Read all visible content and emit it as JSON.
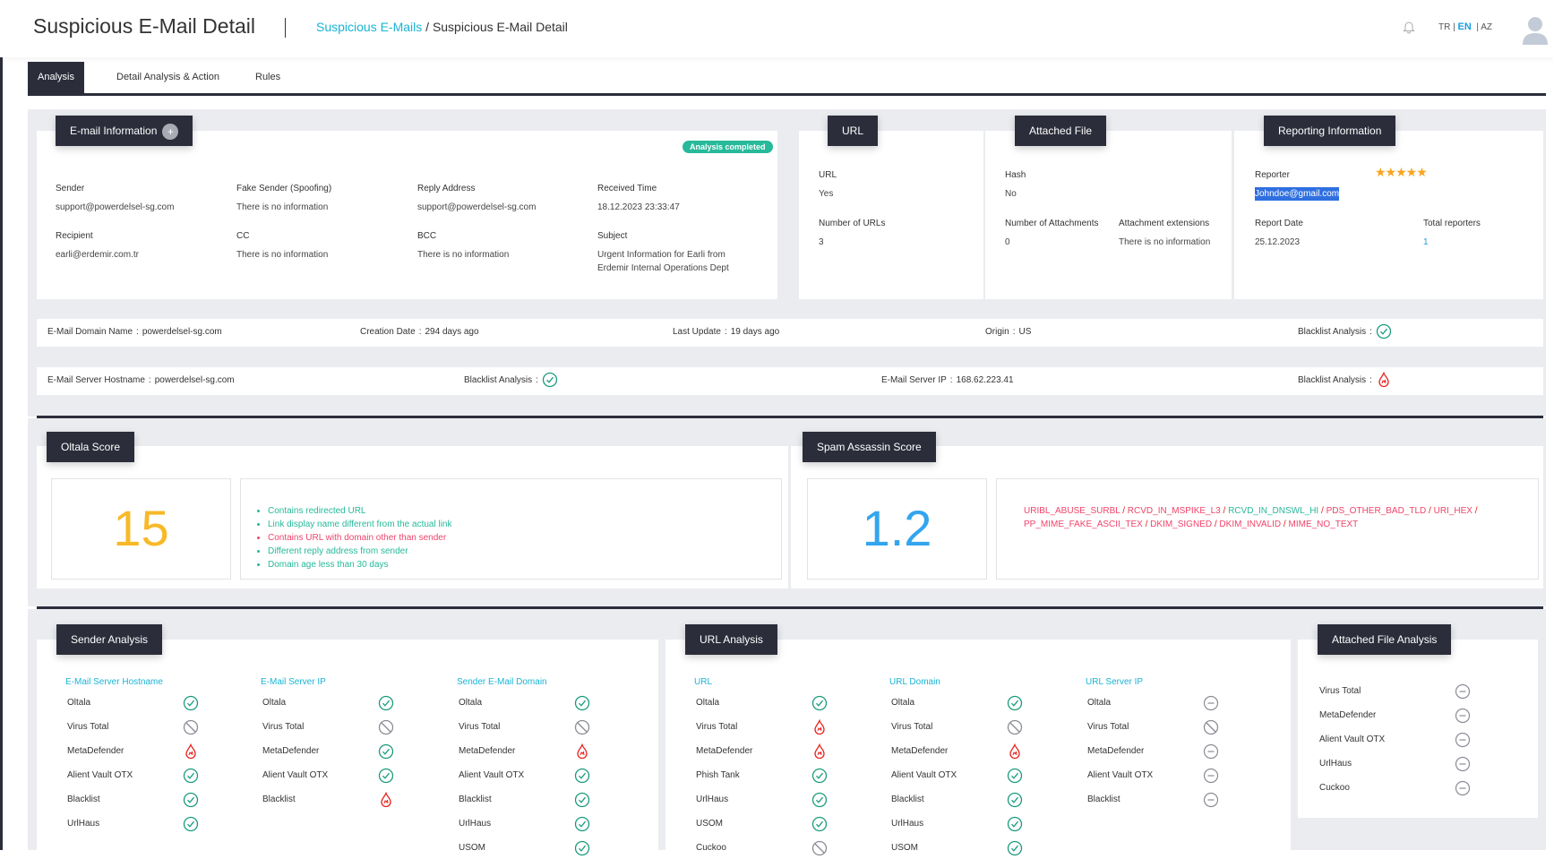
{
  "header": {
    "title": "Suspicious E-Mail Detail",
    "breadcrumb": {
      "parent": "Suspicious E-Mails",
      "separator": "/",
      "current": "Suspicious E-Mail Detail"
    },
    "lang": {
      "tr": "TR",
      "en": "EN",
      "az": "AZ",
      "sep": "|"
    }
  },
  "tabs": [
    {
      "label": "Analysis",
      "active": true
    },
    {
      "label": "Detail Analysis & Action"
    },
    {
      "label": "Rules"
    }
  ],
  "email_info": {
    "title": "E-mail Information",
    "plus": "+",
    "status": "Analysis completed",
    "fields": [
      {
        "label": "Sender",
        "value": "support@powerdelsel-sg.com"
      },
      {
        "label": "Fake Sender (Spoofing)",
        "value": "There is no information"
      },
      {
        "label": "Reply Address",
        "value": "support@powerdelsel-sg.com"
      },
      {
        "label": "Received Time",
        "value": "18.12.2023 23:33:47"
      },
      {
        "label": "Recipient",
        "value": "earli@erdemir.com.tr"
      },
      {
        "label": "CC",
        "value": "There is no information"
      },
      {
        "label": "BCC",
        "value": "There is no information"
      },
      {
        "label": "Subject",
        "value": "Urgent Information for Earli from Erdemir Internal Operations Dept"
      }
    ]
  },
  "url": {
    "title": "URL",
    "url_label": "URL",
    "url_value": "Yes",
    "count_label": "Number of URLs",
    "count_value": "3"
  },
  "attached": {
    "title": "Attached File",
    "hash_label": "Hash",
    "hash_value": "No",
    "count_label": "Number of Attachments",
    "count_value": "0",
    "ext_label": "Attachment extensions",
    "ext_value": "There is no information"
  },
  "reporting": {
    "title": "Reporting Information",
    "reporter_label": "Reporter",
    "reporter_value": "Johndoe@gmail.com",
    "rating": 5,
    "stars": "★★★★★",
    "date_label": "Report Date",
    "date_value": "25.12.2023",
    "total_label": "Total reporters",
    "total_value": "1"
  },
  "domain_row": {
    "domain_label": "E-Mail Domain Name",
    "domain_value": "powerdelsel-sg.com",
    "creation_label": "Creation Date",
    "creation_value": "294 days ago",
    "update_label": "Last Update",
    "update_value": "19 days ago",
    "origin_label": "Origin",
    "origin_value": "US",
    "blacklist_label": "Blacklist Analysis",
    "blacklist_status": "check",
    "colon": ":"
  },
  "server_row": {
    "host_label": "E-Mail Server Hostname",
    "host_value": "powerdelsel-sg.com",
    "blacklist1_label": "Blacklist Analysis",
    "blacklist1_status": "check",
    "ip_label": "E-Mail Server IP",
    "ip_value": "168.62.223.41",
    "blacklist2_label": "Blacklist Analysis",
    "blacklist2_status": "flame",
    "colon": ":"
  },
  "oltala_score": {
    "title": "Oltala Score",
    "score": "15",
    "color": "#f7b928",
    "reasons": [
      {
        "text": "Contains redirected URL",
        "color": "#26b99a"
      },
      {
        "text": "Link display name different from the actual link",
        "color": "#26b99a"
      },
      {
        "text": "Contains URL with domain other than sender",
        "color": "#f0436a"
      },
      {
        "text": "Different reply address from sender",
        "color": "#26b99a"
      },
      {
        "text": "Domain age less than 30 days",
        "color": "#26b99a"
      }
    ]
  },
  "spam_score": {
    "title": "Spam Assassin Score",
    "score": "1.2",
    "color": "#33a5ee",
    "rules": [
      {
        "text": "URIBL_ABUSE_SURBL",
        "color": "#f0436a"
      },
      {
        "text": "RCVD_IN_MSPIKE_L3",
        "color": "#f0436a"
      },
      {
        "text": "RCVD_IN_DNSWL_HI",
        "color": "#26b99a"
      },
      {
        "text": "PDS_OTHER_BAD_TLD",
        "color": "#f0436a"
      },
      {
        "text": "URI_HEX",
        "color": "#f0436a"
      },
      {
        "text": "PP_MIME_FAKE_ASCII_TEX",
        "color": "#f0436a"
      },
      {
        "text": "DKIM_SIGNED",
        "color": "#f0436a"
      },
      {
        "text": "DKIM_INVALID",
        "color": "#f0436a"
      },
      {
        "text": "MIME_NO_TEXT",
        "color": "#f0436a"
      }
    ]
  },
  "sender_analysis": {
    "title": "Sender Analysis",
    "columns": [
      {
        "header": "E-Mail Server Hostname",
        "items": [
          [
            "Oltala",
            "check"
          ],
          [
            "Virus Total",
            "ban"
          ],
          [
            "MetaDefender",
            "flame"
          ],
          [
            "Alient Vault OTX",
            "check"
          ],
          [
            "Blacklist",
            "check"
          ],
          [
            "UrlHaus",
            "check"
          ]
        ]
      },
      {
        "header": "E-Mail Server IP",
        "items": [
          [
            "Oltala",
            "check"
          ],
          [
            "Virus Total",
            "ban"
          ],
          [
            "MetaDefender",
            "check"
          ],
          [
            "Alient Vault OTX",
            "check"
          ],
          [
            "Blacklist",
            "flame"
          ]
        ]
      },
      {
        "header": "Sender E-Mail Domain",
        "items": [
          [
            "Oltala",
            "check"
          ],
          [
            "Virus Total",
            "ban"
          ],
          [
            "MetaDefender",
            "flame"
          ],
          [
            "Alient Vault OTX",
            "check"
          ],
          [
            "Blacklist",
            "check"
          ],
          [
            "UrlHaus",
            "check"
          ],
          [
            "USOM",
            "check"
          ]
        ]
      }
    ]
  },
  "url_analysis": {
    "title": "URL Analysis",
    "columns": [
      {
        "header": "URL",
        "items": [
          [
            "Oltala",
            "check"
          ],
          [
            "Virus Total",
            "flame"
          ],
          [
            "MetaDefender",
            "flame"
          ],
          [
            "Phish Tank",
            "check"
          ],
          [
            "UrlHaus",
            "check"
          ],
          [
            "USOM",
            "check"
          ],
          [
            "Cuckoo",
            "ban"
          ]
        ]
      },
      {
        "header": "URL Domain",
        "items": [
          [
            "Oltala",
            "check"
          ],
          [
            "Virus Total",
            "ban"
          ],
          [
            "MetaDefender",
            "flame"
          ],
          [
            "Alient Vault OTX",
            "check"
          ],
          [
            "Blacklist",
            "check"
          ],
          [
            "UrlHaus",
            "check"
          ],
          [
            "USOM",
            "check"
          ]
        ]
      },
      {
        "header": "URL Server IP",
        "items": [
          [
            "Oltala",
            "minus"
          ],
          [
            "Virus Total",
            "ban"
          ],
          [
            "MetaDefender",
            "minus"
          ],
          [
            "Alient Vault OTX",
            "minus"
          ],
          [
            "Blacklist",
            "minus"
          ]
        ]
      }
    ]
  },
  "file_analysis": {
    "title": "Attached File Analysis",
    "items": [
      [
        "Virus Total",
        "minus"
      ],
      [
        "MetaDefender",
        "minus"
      ],
      [
        "Alient Vault OTX",
        "minus"
      ],
      [
        "UrlHaus",
        "minus"
      ],
      [
        "Cuckoo",
        "minus"
      ]
    ]
  },
  "colors": {
    "dark": "#2b2d3b",
    "accent": "#1ab4d6",
    "ok": "#1a9b7b",
    "danger": "#e8201c",
    "neutral": "#8a8c94"
  }
}
